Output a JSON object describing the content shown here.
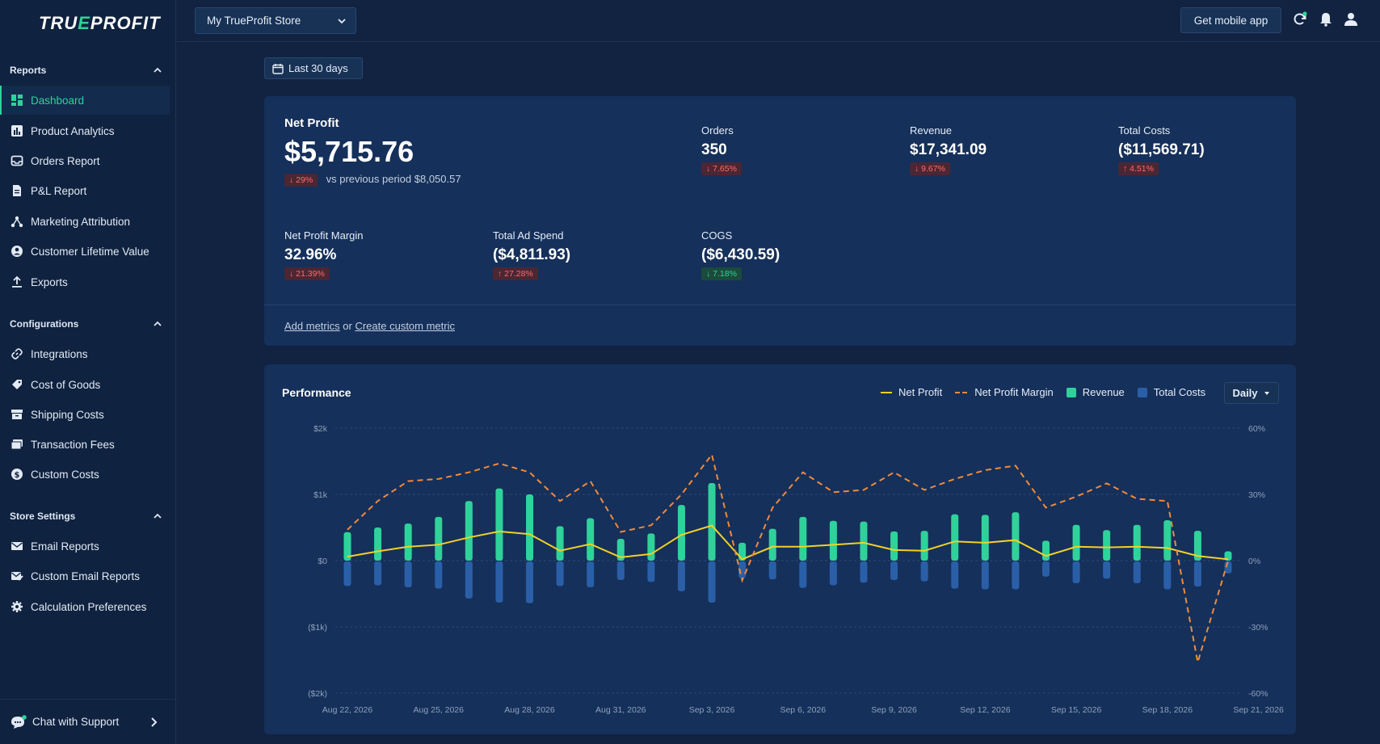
{
  "app": {
    "logo_left": "TRU",
    "logo_accent": "E",
    "logo_right": "PROFIT"
  },
  "sidebar": {
    "sections": [
      {
        "title": "Reports",
        "items": [
          {
            "label": "Dashboard",
            "icon": "dashboard-icon",
            "active": true
          },
          {
            "label": "Product Analytics",
            "icon": "bar-chart-icon"
          },
          {
            "label": "Orders Report",
            "icon": "inbox-icon"
          },
          {
            "label": "P&L Report",
            "icon": "document-icon"
          },
          {
            "label": "Marketing Attribution",
            "icon": "network-icon"
          },
          {
            "label": "Customer Lifetime Value",
            "icon": "user-circle-icon"
          },
          {
            "label": "Exports",
            "icon": "upload-icon"
          }
        ]
      },
      {
        "title": "Configurations",
        "items": [
          {
            "label": "Integrations",
            "icon": "link-icon"
          },
          {
            "label": "Cost of Goods",
            "icon": "tag-icon"
          },
          {
            "label": "Shipping Costs",
            "icon": "box-icon"
          },
          {
            "label": "Transaction Fees",
            "icon": "card-icon"
          },
          {
            "label": "Custom Costs",
            "icon": "dollar-icon"
          }
        ]
      },
      {
        "title": "Store Settings",
        "items": [
          {
            "label": "Email Reports",
            "icon": "mail-icon"
          },
          {
            "label": "Custom Email Reports",
            "icon": "mail-edit-icon"
          },
          {
            "label": "Calculation Preferences",
            "icon": "gear-icon"
          }
        ]
      }
    ],
    "chat_support": "Chat with Support"
  },
  "topbar": {
    "store": "My TrueProfit Store",
    "mobile_button": "Get mobile app"
  },
  "filter": {
    "date_range": "Last 30 days"
  },
  "metrics": {
    "net_profit": {
      "label": "Net Profit",
      "value": "$5,715.76",
      "change": "↓ 29%",
      "vs": "vs previous period $8,050.57"
    },
    "orders": {
      "label": "Orders",
      "value": "350",
      "change": "↓ 7.65%"
    },
    "revenue": {
      "label": "Revenue",
      "value": "$17,341.09",
      "change": "↓ 9.67%"
    },
    "total_costs": {
      "label": "Total Costs",
      "value": "($11,569.71)",
      "change": "↑ 4.51%"
    },
    "net_profit_margin": {
      "label": "Net Profit Margin",
      "value": "32.96%",
      "change": "↓ 21.39%"
    },
    "total_ad_spend": {
      "label": "Total Ad Spend",
      "value": "($4,811.93)",
      "change": "↑ 27.28%"
    },
    "cogs": {
      "label": "COGS",
      "value": "($6,430.59)",
      "change": "↓ 7.18%"
    },
    "add_metrics": "Add metrics",
    "or": "or",
    "create_custom": "Create custom metric"
  },
  "performance": {
    "title": "Performance",
    "daily": "Daily",
    "colors": {
      "net_profit": "#f2d024",
      "margin": "#f08a3c",
      "revenue": "#2fd29a",
      "costs": "#2a5fa8"
    }
  },
  "chart_data": {
    "type": "bar",
    "x_ticks": [
      "Aug 22, 2026",
      "Aug 25, 2026",
      "Aug 28, 2026",
      "Aug 31, 2026",
      "Sep 3, 2026",
      "Sep 6, 2026",
      "Sep 9, 2026",
      "Sep 12, 2026",
      "Sep 15, 2026",
      "Sep 18, 2026",
      "Sep 21, 2026"
    ],
    "y_left_ticks": [
      "$2k",
      "$1k",
      "$0",
      "($1k)",
      "($2k)"
    ],
    "y_right_ticks": [
      "60%",
      "30%",
      "0%",
      "-30%",
      "-60%"
    ],
    "ylim_left": [
      -2000,
      2000
    ],
    "ylim_right": [
      -60,
      60
    ],
    "series": [
      {
        "name": "Revenue",
        "type": "bar",
        "values": [
          430,
          500,
          560,
          660,
          900,
          1090,
          1000,
          520,
          640,
          330,
          410,
          840,
          1170,
          270,
          480,
          660,
          600,
          590,
          440,
          450,
          700,
          690,
          730,
          300,
          540,
          460,
          540,
          610,
          450,
          140
        ]
      },
      {
        "name": "Total Costs",
        "type": "bar",
        "values": [
          -370,
          -360,
          -390,
          -410,
          -560,
          -620,
          -630,
          -370,
          -390,
          -280,
          -310,
          -450,
          -620,
          -250,
          -270,
          -400,
          -360,
          -320,
          -280,
          -300,
          -410,
          -420,
          -420,
          -230,
          -330,
          -260,
          -330,
          -420,
          -380,
          -180
        ]
      },
      {
        "name": "Net Profit",
        "type": "line",
        "values": [
          60,
          140,
          210,
          240,
          350,
          440,
          400,
          150,
          250,
          50,
          100,
          390,
          530,
          20,
          210,
          210,
          240,
          270,
          160,
          150,
          290,
          270,
          310,
          70,
          210,
          200,
          210,
          190,
          70,
          20
        ]
      },
      {
        "name": "Net Profit Margin",
        "type": "line",
        "dashed": true,
        "values": [
          14,
          27,
          36,
          37,
          40,
          44,
          40,
          27,
          36,
          13,
          16,
          30,
          48,
          -9,
          24,
          40,
          31,
          32,
          40,
          32,
          37,
          41,
          43,
          24,
          29,
          35,
          28,
          27,
          -46,
          0
        ]
      }
    ],
    "legend": "top-right",
    "grid": true
  }
}
